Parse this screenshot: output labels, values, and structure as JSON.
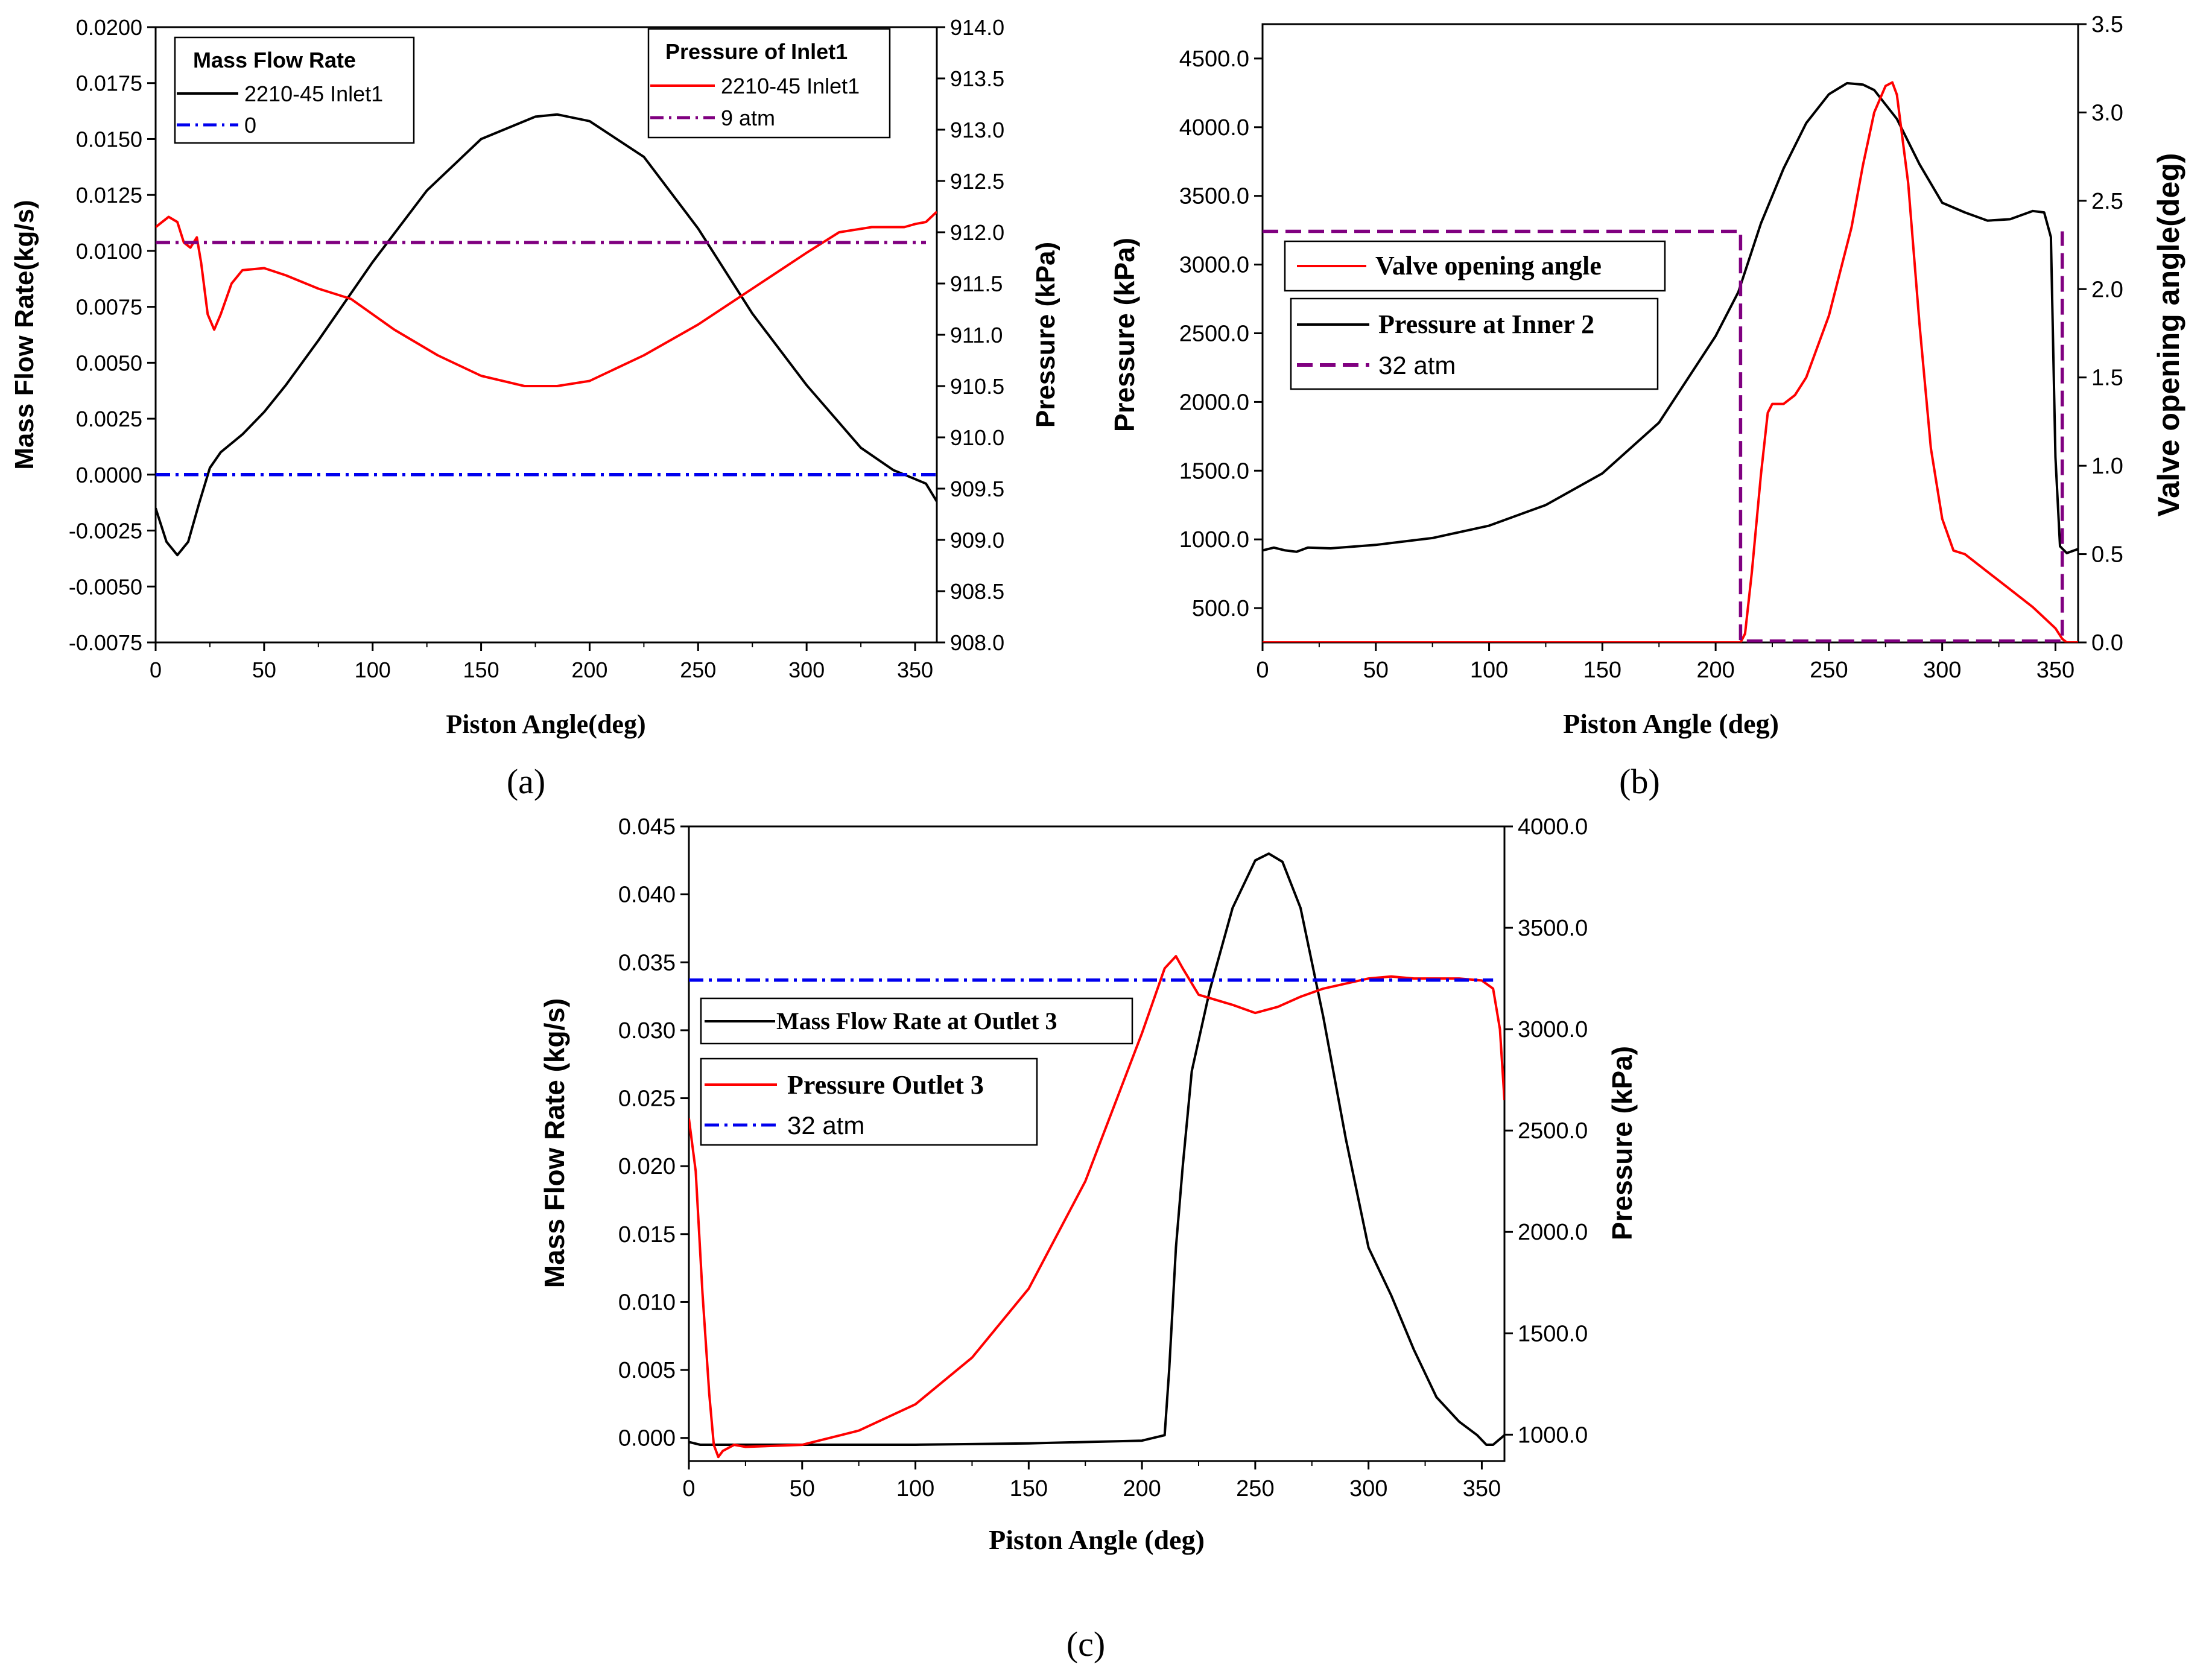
{
  "chart_data": [
    {
      "id": "a",
      "panel_label": "(a)",
      "type": "line",
      "xlabel": "Piston Angle(deg)",
      "ylabel": "Mass Flow Rate(kg/s)",
      "y2label": "Pressure (kPa)",
      "xlim": [
        0,
        360
      ],
      "ylim": [
        -0.0075,
        0.02
      ],
      "y2lim": [
        908,
        914
      ],
      "xticks": [
        0,
        50,
        100,
        150,
        200,
        250,
        300,
        350
      ],
      "xtick_labels": [
        "0",
        "50",
        "100",
        "150",
        "200",
        "250",
        "300",
        "350"
      ],
      "yticks": [
        -0.0075,
        -0.005,
        -0.0025,
        0,
        0.0025,
        0.005,
        0.0075,
        0.01,
        0.0125,
        0.015,
        0.0175,
        0.02
      ],
      "ytick_labels": [
        "-0.0075",
        "-0.0050",
        "-0.0025",
        "0.0000",
        "0.0025",
        "0.0050",
        "0.0075",
        "0.0100",
        "0.0125",
        "0.0150",
        "0.0175",
        "0.0200"
      ],
      "y2ticks": [
        908,
        908.5,
        909,
        909.5,
        910,
        910.5,
        911,
        911.5,
        912,
        912.5,
        913,
        913.5,
        914
      ],
      "y2tick_labels": [
        "908.0",
        "908.5",
        "909.0",
        "909.5",
        "910.0",
        "910.5",
        "911.0",
        "911.5",
        "912.0",
        "912.5",
        "913.0",
        "913.5",
        "914.0"
      ],
      "legends": [
        {
          "title": "Mass Flow Rate",
          "position": "top-left",
          "entries": [
            {
              "label": "2210-45 Inlet1",
              "color": "#000000",
              "dash": "solid"
            },
            {
              "label": "0",
              "color": "#0000ee",
              "dash": "dashdot"
            }
          ]
        },
        {
          "title": "Pressure of Inlet1",
          "position": "top-right",
          "entries": [
            {
              "label": "2210-45 Inlet1",
              "color": "#ff0000",
              "dash": "solid"
            },
            {
              "label": "9 atm",
              "color": "#800080",
              "dash": "dashdot"
            }
          ]
        }
      ],
      "series": [
        {
          "name": "2210-45 Inlet1 (mass flow)",
          "axis": "left",
          "color": "#000000",
          "dash": "solid",
          "x": [
            0,
            5,
            10,
            15,
            20,
            25,
            30,
            40,
            50,
            60,
            75,
            100,
            125,
            150,
            175,
            185,
            200,
            225,
            250,
            275,
            300,
            325,
            340,
            350,
            355,
            360
          ],
          "y": [
            -0.0015,
            -0.003,
            -0.0036,
            -0.003,
            -0.0013,
            0.0003,
            0.001,
            0.0018,
            0.0028,
            0.004,
            0.006,
            0.0095,
            0.0127,
            0.015,
            0.016,
            0.0161,
            0.0158,
            0.0142,
            0.011,
            0.0072,
            0.004,
            0.0012,
            0.0002,
            -0.0002,
            -0.0004,
            -0.0012
          ]
        },
        {
          "name": "0",
          "axis": "left",
          "color": "#0000ee",
          "dash": "dashdot",
          "x": [
            0,
            360
          ],
          "y": [
            0,
            0
          ]
        },
        {
          "name": "2210-45 Inlet1 (pressure)",
          "axis": "right",
          "color": "#ff0000",
          "dash": "solid",
          "x": [
            0,
            3,
            6,
            10,
            13,
            16,
            19,
            21,
            24,
            27,
            30,
            35,
            40,
            50,
            60,
            75,
            90,
            110,
            130,
            150,
            170,
            185,
            200,
            210,
            225,
            250,
            275,
            300,
            315,
            330,
            345,
            350,
            355,
            360
          ],
          "y": [
            912.05,
            912.1,
            912.15,
            912.1,
            911.9,
            911.85,
            911.95,
            911.7,
            911.2,
            911.05,
            911.2,
            911.5,
            911.63,
            911.65,
            911.58,
            911.45,
            911.35,
            911.05,
            910.8,
            910.6,
            910.5,
            910.5,
            910.55,
            910.65,
            910.8,
            911.1,
            911.45,
            911.8,
            912.0,
            912.05,
            912.05,
            912.08,
            912.1,
            912.2
          ]
        },
        {
          "name": "9 atm",
          "axis": "right",
          "color": "#800080",
          "dash": "dashdot",
          "x": [
            0,
            355
          ],
          "y": [
            911.9,
            911.9
          ]
        }
      ]
    },
    {
      "id": "b",
      "panel_label": "(b)",
      "type": "line",
      "xlabel": "Piston Angle (deg)",
      "ylabel": "Pressure (kPa)",
      "y2label": "Valve opening angle(deg)",
      "xlim": [
        0,
        360
      ],
      "ylim": [
        250,
        4750
      ],
      "y2lim": [
        0,
        3.5
      ],
      "xticks": [
        0,
        50,
        100,
        150,
        200,
        250,
        300,
        350
      ],
      "xtick_labels": [
        "0",
        "50",
        "100",
        "150",
        "200",
        "250",
        "300",
        "350"
      ],
      "yticks": [
        500,
        1000,
        1500,
        2000,
        2500,
        3000,
        3500,
        4000,
        4500
      ],
      "ytick_labels": [
        "500.0",
        "1000.0",
        "1500.0",
        "2000.0",
        "2500.0",
        "3000.0",
        "3500.0",
        "4000.0",
        "4500.0"
      ],
      "y2ticks": [
        0,
        0.5,
        1,
        1.5,
        2,
        2.5,
        3,
        3.5
      ],
      "y2tick_labels": [
        "0.0",
        "0.5",
        "1.0",
        "1.5",
        "2.0",
        "2.5",
        "3.0",
        "3.5"
      ],
      "legends": [
        {
          "title": "",
          "position": "left",
          "entries": [
            {
              "label": "Valve opening angle",
              "color": "#ff0000",
              "dash": "solid"
            }
          ]
        },
        {
          "title": "",
          "position": "left",
          "entries": [
            {
              "label": "Pressure at Inner 2",
              "color": "#000000",
              "dash": "solid"
            },
            {
              "label": "32 atm",
              "color": "#800080",
              "dash": "dash"
            }
          ]
        }
      ],
      "series": [
        {
          "name": "Pressure at Inner 2",
          "axis": "left",
          "color": "#000000",
          "dash": "solid",
          "x": [
            0,
            5,
            10,
            15,
            20,
            30,
            50,
            75,
            100,
            125,
            150,
            175,
            200,
            210,
            220,
            230,
            240,
            250,
            258,
            265,
            270,
            280,
            290,
            300,
            310,
            320,
            330,
            340,
            345,
            348,
            350,
            352,
            355,
            360
          ],
          "y": [
            920,
            940,
            920,
            910,
            940,
            935,
            960,
            1010,
            1100,
            1250,
            1480,
            1850,
            2480,
            2800,
            3300,
            3700,
            4030,
            4240,
            4320,
            4310,
            4270,
            4060,
            3730,
            3450,
            3380,
            3320,
            3330,
            3390,
            3380,
            3200,
            1600,
            950,
            900,
            930
          ]
        },
        {
          "name": "Valve opening angle",
          "axis": "right",
          "color": "#ff0000",
          "dash": "solid",
          "x": [
            0,
            211,
            213,
            216,
            220,
            223,
            225,
            230,
            235,
            240,
            250,
            260,
            265,
            270,
            275,
            278,
            280,
            285,
            290,
            295,
            300,
            305,
            310,
            320,
            330,
            340,
            350,
            353,
            355,
            360
          ],
          "y": [
            0,
            0,
            0.05,
            0.4,
            0.95,
            1.3,
            1.35,
            1.35,
            1.4,
            1.5,
            1.85,
            2.35,
            2.7,
            3.0,
            3.15,
            3.17,
            3.1,
            2.6,
            1.8,
            1.1,
            0.7,
            0.52,
            0.5,
            0.4,
            0.3,
            0.2,
            0.08,
            0.02,
            0,
            0
          ]
        },
        {
          "name": "32 atm",
          "axis": "left",
          "color": "#800080",
          "dash": "dash",
          "x": [
            0,
            211,
            211,
            211,
            353,
            353,
            353
          ],
          "y": [
            3242,
            3242,
            3242,
            260,
            260,
            3242,
            3242
          ]
        }
      ]
    },
    {
      "id": "c",
      "panel_label": "(c)",
      "type": "line",
      "xlabel": "Piston Angle (deg)",
      "ylabel": "Mass Flow Rate (kg/s)",
      "y2label": "Pressure (kPa)",
      "xlim": [
        0,
        360
      ],
      "ylim": [
        -0.0017,
        0.045
      ],
      "y2lim": [
        870,
        4000
      ],
      "xticks": [
        0,
        50,
        100,
        150,
        200,
        250,
        300,
        350
      ],
      "xtick_labels": [
        "0",
        "50",
        "100",
        "150",
        "200",
        "250",
        "300",
        "350"
      ],
      "yticks": [
        0,
        0.005,
        0.01,
        0.015,
        0.02,
        0.025,
        0.03,
        0.035,
        0.04,
        0.045
      ],
      "ytick_labels": [
        "0.000",
        "0.005",
        "0.010",
        "0.015",
        "0.020",
        "0.025",
        "0.030",
        "0.035",
        "0.040",
        "0.045"
      ],
      "y2ticks": [
        1000,
        1500,
        2000,
        2500,
        3000,
        3500,
        4000
      ],
      "y2tick_labels": [
        "1000.0",
        "1500.0",
        "2000.0",
        "2500.0",
        "3000.0",
        "3500.0",
        "4000.0"
      ],
      "legends": [
        {
          "title": "",
          "position": "left",
          "entries": [
            {
              "label": "Mass Flow Rate at Outlet 3",
              "color": "#000000",
              "dash": "solid"
            }
          ]
        },
        {
          "title": "",
          "position": "left",
          "entries": [
            {
              "label": "Pressure Outlet 3",
              "color": "#ff0000",
              "dash": "solid"
            },
            {
              "label": "32 atm",
              "color": "#0000ee",
              "dash": "dashdot"
            }
          ]
        }
      ],
      "series": [
        {
          "name": "Mass Flow Rate at Outlet 3",
          "axis": "left",
          "color": "#000000",
          "dash": "solid",
          "x": [
            0,
            5,
            10,
            50,
            100,
            150,
            200,
            210,
            212,
            215,
            218,
            222,
            230,
            240,
            250,
            256,
            262,
            270,
            280,
            290,
            300,
            310,
            320,
            330,
            340,
            348,
            352,
            355,
            360
          ],
          "y": [
            -0.0003,
            -0.0005,
            -0.0005,
            -0.0005,
            -0.0005,
            -0.0004,
            -0.0002,
            0.0002,
            0.005,
            0.014,
            0.02,
            0.027,
            0.033,
            0.039,
            0.0425,
            0.043,
            0.0424,
            0.039,
            0.031,
            0.022,
            0.014,
            0.0105,
            0.0065,
            0.003,
            0.0012,
            0.0002,
            -0.0005,
            -0.0005,
            0.0002
          ]
        },
        {
          "name": "Pressure Outlet 3",
          "axis": "right",
          "color": "#ff0000",
          "dash": "solid",
          "x": [
            0,
            3,
            6,
            9,
            11,
            13,
            15,
            20,
            25,
            50,
            75,
            100,
            125,
            150,
            175,
            200,
            210,
            215,
            218,
            225,
            240,
            250,
            260,
            270,
            280,
            300,
            310,
            320,
            340,
            350,
            355,
            358,
            360
          ],
          "y": [
            2560,
            2300,
            1700,
            1200,
            950,
            890,
            920,
            950,
            940,
            950,
            1020,
            1150,
            1380,
            1720,
            2250,
            2980,
            3300,
            3360,
            3300,
            3170,
            3120,
            3080,
            3110,
            3160,
            3200,
            3250,
            3260,
            3250,
            3250,
            3240,
            3200,
            3000,
            2650
          ]
        },
        {
          "name": "32 atm",
          "axis": "right",
          "color": "#0000ee",
          "dash": "dashdot",
          "x": [
            0,
            355
          ],
          "y": [
            3242,
            3242
          ]
        }
      ]
    }
  ]
}
